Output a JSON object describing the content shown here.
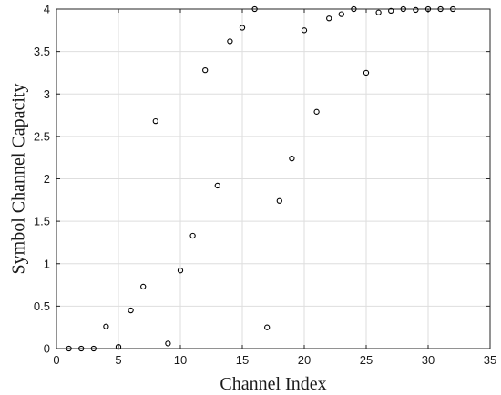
{
  "chart_data": {
    "type": "scatter",
    "title": "",
    "xlabel": "Channel Index",
    "ylabel": "Symbol Channel Capacity",
    "xlim": [
      0,
      35
    ],
    "ylim": [
      0,
      4
    ],
    "xticks": [
      0,
      5,
      10,
      15,
      20,
      25,
      30,
      35
    ],
    "yticks": [
      0,
      0.5,
      1,
      1.5,
      2,
      2.5,
      3,
      3.5,
      4
    ],
    "xtick_labels": [
      "0",
      "5",
      "10",
      "15",
      "20",
      "25",
      "30",
      "35"
    ],
    "ytick_labels": [
      "0",
      "0.5",
      "1",
      "1.5",
      "2",
      "2.5",
      "3",
      "3.5",
      "4"
    ],
    "grid": true,
    "marker": "open-circle",
    "marker_color": "#000000",
    "series": [
      {
        "x": [
          1,
          2,
          3,
          4,
          5,
          6,
          7,
          8,
          9,
          10,
          11,
          12,
          13,
          14,
          15,
          16,
          17,
          18,
          19,
          20,
          21,
          22,
          23,
          24,
          25,
          26,
          27,
          28,
          29,
          30,
          31,
          32
        ],
        "y": [
          0.0,
          0.0,
          0.0,
          0.26,
          0.02,
          0.45,
          0.73,
          2.68,
          0.06,
          0.92,
          1.33,
          3.28,
          1.92,
          3.62,
          3.78,
          4.0,
          0.25,
          1.74,
          2.24,
          3.75,
          2.79,
          3.89,
          3.94,
          4.0,
          3.25,
          3.96,
          3.98,
          4.0,
          3.99,
          4.0,
          4.0,
          4.0
        ]
      }
    ]
  }
}
